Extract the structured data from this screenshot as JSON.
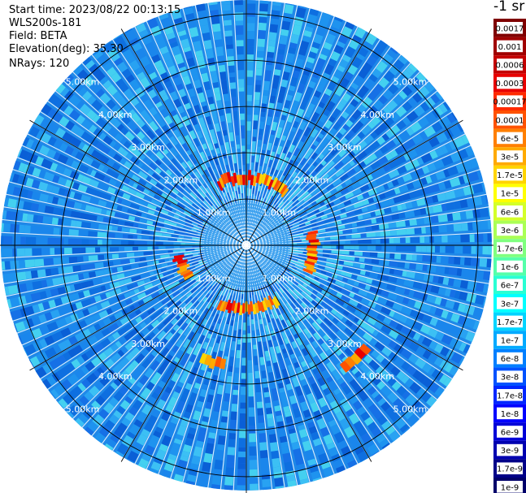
{
  "header": {
    "start_time": "Start time: 2023/08/22 00:13:15",
    "instrument": "WLS200s-181",
    "field": "Field: BETA",
    "elevation": "Elevation(deg): 35.30",
    "nrays": "NRays: 120"
  },
  "colorbar": {
    "title": "-1 sr",
    "labels": [
      "0.0017",
      "0.001",
      "0.0006",
      "0.0003",
      "0.00017",
      "0.0001",
      "6e-5",
      "3e-5",
      "1.7e-5",
      "1e-5",
      "6e-6",
      "3e-6",
      "1.7e-6",
      "1e-6",
      "6e-7",
      "3e-7",
      "1.7e-7",
      "1e-7",
      "6e-8",
      "3e-8",
      "1.7e-8",
      "1e-8",
      "6e-9",
      "3e-9",
      "1.7e-9",
      "1e-9"
    ],
    "colors": [
      "#7f0000",
      "#a00000",
      "#c40000",
      "#e80000",
      "#ff2a00",
      "#ff5200",
      "#ff7f00",
      "#ffaa00",
      "#ffd400",
      "#ffff00",
      "#d4ff2a",
      "#aaff55",
      "#7fff7f",
      "#55ffaa",
      "#2affd4",
      "#00ffff",
      "#00d4ff",
      "#00aaff",
      "#007fff",
      "#0052ff",
      "#0026ff",
      "#0000ff",
      "#0000d8",
      "#0000b0",
      "#000088",
      "#00006a"
    ]
  },
  "chart_data": {
    "type": "heatmap",
    "projection": "polar PPI scan",
    "field": "BETA",
    "rays": 120,
    "range_rings_km": [
      1.0,
      2.0,
      3.0,
      4.0,
      5.0
    ],
    "ring_labels": [
      "1.00km",
      "2.00km",
      "3.00km",
      "4.00km",
      "5.00km"
    ],
    "max_range_km": 5.3,
    "background_value": "1e-8 to 6e-8",
    "features": [
      {
        "azimuth_deg": [
          -25,
          35
        ],
        "range_km": 1.45,
        "value": "3e-5 to 0.0006"
      },
      {
        "azimuth_deg": [
          78,
          112
        ],
        "range_km": 1.45,
        "value": "3e-5 to 0.0006"
      },
      {
        "azimuth_deg": [
          150,
          205
        ],
        "range_km": 1.35,
        "value": "3e-5 to 0.0006"
      },
      {
        "azimuth_deg": [
          240,
          260
        ],
        "range_km": 1.45,
        "value": "3e-5 to 0.0006"
      },
      {
        "azimuth_deg": [
          190,
          200
        ],
        "range_km": 2.6,
        "value": "3e-5 to 0.0003"
      },
      {
        "azimuth_deg": [
          130,
          140
        ],
        "range_km": 3.4,
        "value": "3e-5 to 0.0003"
      }
    ]
  }
}
